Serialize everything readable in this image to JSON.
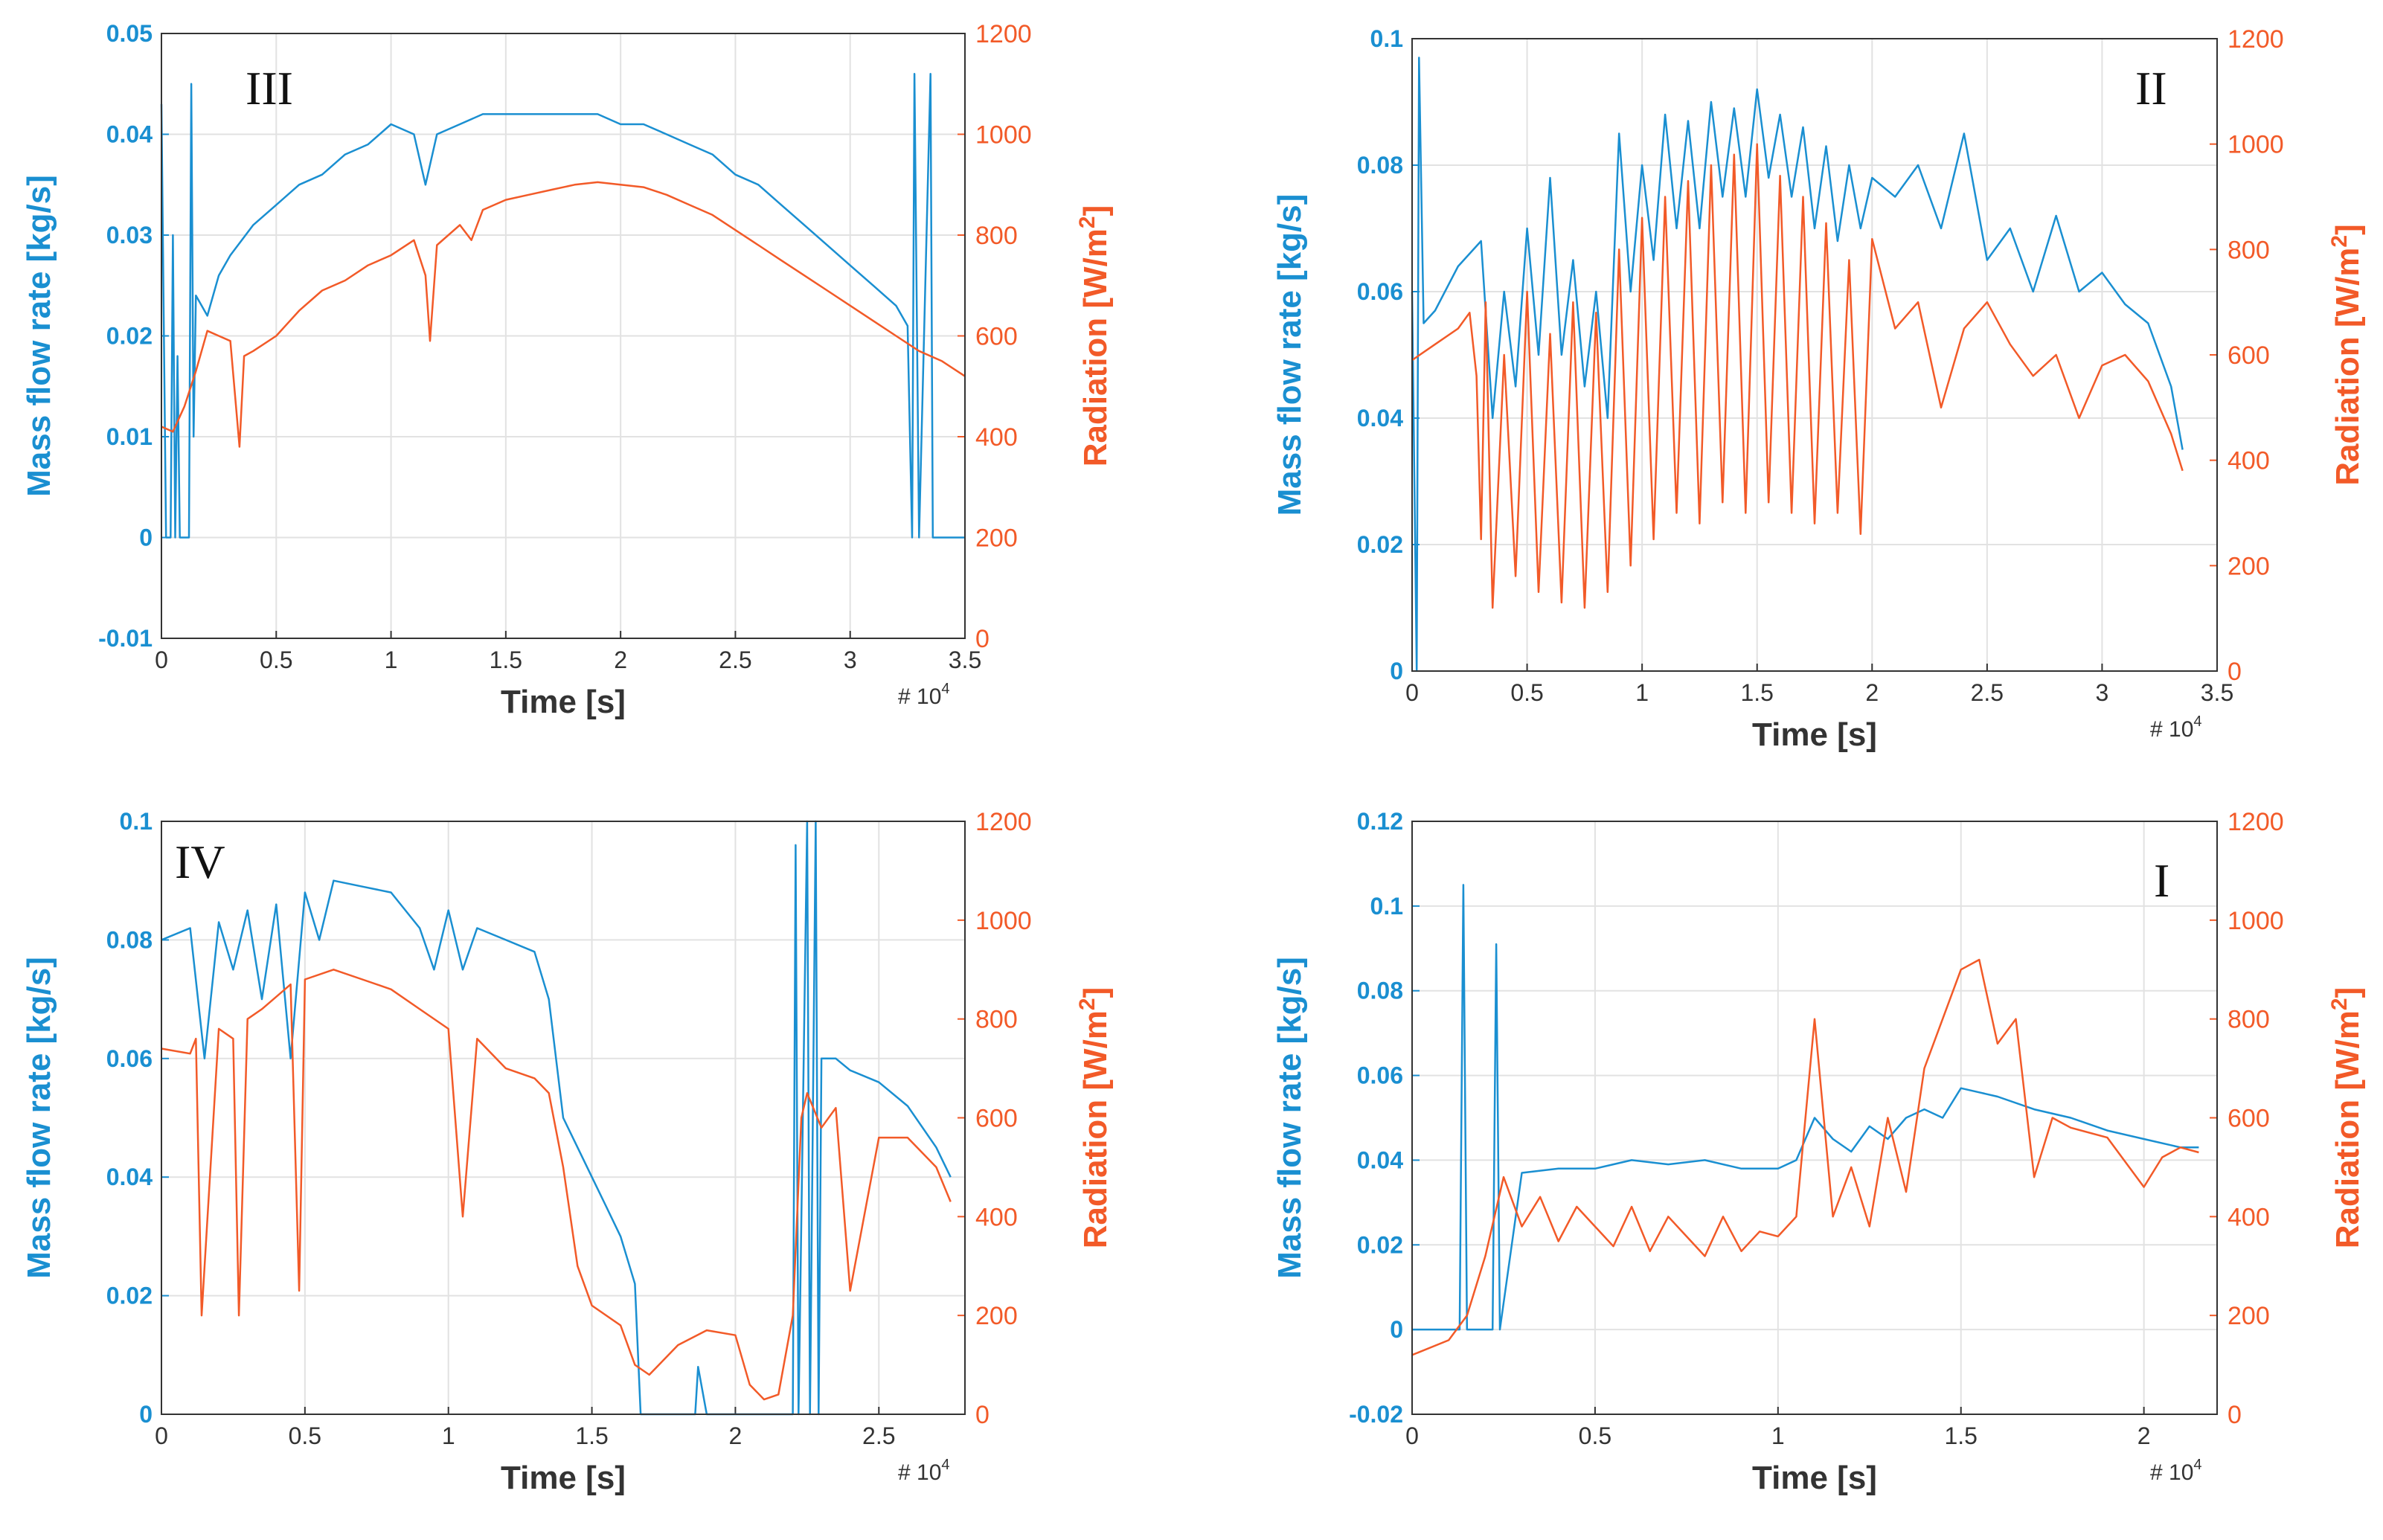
{
  "colors": {
    "mass_flow": "#1a8fd1",
    "radiation": "#f25a28"
  },
  "chart_data": [
    {
      "type": "line",
      "panel_label": "III",
      "xlabel": "Time [s]",
      "x_multiplier": "# 10",
      "x_multiplier_exp": "4",
      "ylabel": "Mass flow rate [kg/s]",
      "y2label_main": "Radiation [W/m",
      "y2label_sup": "2",
      "y2label_end": "]",
      "xlim": [
        0,
        3.5
      ],
      "ylim": [
        -0.01,
        0.05
      ],
      "y2lim": [
        0,
        1200
      ],
      "xticks": [
        "0",
        "0.5",
        "1",
        "1.5",
        "2",
        "2.5",
        "3",
        "3.5"
      ],
      "yticks": [
        "-0.01",
        "0",
        "0.01",
        "0.02",
        "0.03",
        "0.04",
        "0.05"
      ],
      "y2ticks": [
        "0",
        "200",
        "400",
        "600",
        "800",
        "1000",
        "1200"
      ],
      "grid": true,
      "series": [
        {
          "axis": "left",
          "color": "#1a8fd1",
          "x": [
            0,
            0.02,
            0.04,
            0.05,
            0.06,
            0.07,
            0.08,
            0.1,
            0.12,
            0.13,
            0.14,
            0.15,
            0.2,
            0.25,
            0.3,
            0.4,
            0.5,
            0.6,
            0.7,
            0.8,
            0.9,
            1.0,
            1.1,
            1.15,
            1.2,
            1.3,
            1.4,
            1.5,
            1.6,
            1.7,
            1.8,
            1.9,
            2.0,
            2.1,
            2.2,
            2.3,
            2.4,
            2.5,
            2.6,
            2.7,
            2.8,
            2.9,
            3.0,
            3.1,
            3.2,
            3.25,
            3.27,
            3.28,
            3.3,
            3.35,
            3.36,
            3.4,
            3.5
          ],
          "y": [
            0.043,
            0,
            0.0,
            0.03,
            0.0,
            0.018,
            0.0,
            0.0,
            0.0,
            0.045,
            0.01,
            0.024,
            0.022,
            0.026,
            0.028,
            0.031,
            0.033,
            0.035,
            0.036,
            0.038,
            0.039,
            0.041,
            0.04,
            0.035,
            0.04,
            0.041,
            0.042,
            0.042,
            0.042,
            0.042,
            0.042,
            0.042,
            0.041,
            0.041,
            0.04,
            0.039,
            0.038,
            0.036,
            0.035,
            0.033,
            0.031,
            0.029,
            0.027,
            0.025,
            0.023,
            0.021,
            0.0,
            0.046,
            0.0,
            0.046,
            0.0,
            0.0,
            0.0
          ]
        },
        {
          "axis": "right",
          "color": "#f25a28",
          "x": [
            0,
            0.05,
            0.1,
            0.15,
            0.2,
            0.25,
            0.3,
            0.34,
            0.36,
            0.4,
            0.5,
            0.6,
            0.7,
            0.8,
            0.9,
            1.0,
            1.1,
            1.15,
            1.17,
            1.2,
            1.3,
            1.35,
            1.4,
            1.5,
            1.6,
            1.7,
            1.8,
            1.9,
            2.0,
            2.1,
            2.2,
            2.3,
            2.4,
            2.5,
            2.6,
            2.7,
            2.8,
            2.9,
            3.0,
            3.1,
            3.2,
            3.3,
            3.4,
            3.5
          ],
          "y": [
            420,
            410,
            460,
            530,
            610,
            600,
            590,
            380,
            560,
            570,
            600,
            650,
            690,
            710,
            740,
            760,
            790,
            720,
            590,
            780,
            820,
            790,
            850,
            870,
            880,
            890,
            900,
            905,
            900,
            895,
            880,
            860,
            840,
            810,
            780,
            750,
            720,
            690,
            660,
            630,
            600,
            570,
            550,
            520
          ]
        }
      ]
    },
    {
      "type": "line",
      "panel_label": "II",
      "xlabel": "Time [s]",
      "x_multiplier": "# 10",
      "x_multiplier_exp": "4",
      "ylabel": "Mass flow rate [kg/s]",
      "y2label_main": "Radiation [W/m",
      "y2label_sup": "2",
      "y2label_end": "]",
      "xlim": [
        0,
        3.5
      ],
      "ylim": [
        0,
        0.1
      ],
      "y2lim": [
        0,
        1200
      ],
      "xticks": [
        "0",
        "0.5",
        "1",
        "1.5",
        "2",
        "2.5",
        "3",
        "3.5"
      ],
      "yticks": [
        "0",
        "0.02",
        "0.04",
        "0.06",
        "0.08",
        "0.1"
      ],
      "y2ticks": [
        "0",
        "200",
        "400",
        "600",
        "800",
        "1000",
        "1200"
      ],
      "grid": true,
      "series": [
        {
          "axis": "left",
          "color": "#1a8fd1",
          "x": [
            0,
            0.02,
            0.03,
            0.05,
            0.1,
            0.2,
            0.3,
            0.35,
            0.4,
            0.45,
            0.5,
            0.55,
            0.6,
            0.65,
            0.7,
            0.75,
            0.8,
            0.85,
            0.9,
            0.95,
            1.0,
            1.05,
            1.1,
            1.15,
            1.2,
            1.25,
            1.3,
            1.35,
            1.4,
            1.45,
            1.5,
            1.55,
            1.6,
            1.65,
            1.7,
            1.75,
            1.8,
            1.85,
            1.9,
            1.95,
            2.0,
            2.1,
            2.2,
            2.3,
            2.4,
            2.5,
            2.6,
            2.7,
            2.8,
            2.9,
            3.0,
            3.1,
            3.2,
            3.3,
            3.35
          ],
          "y": [
            0.06,
            0.0,
            0.097,
            0.055,
            0.057,
            0.064,
            0.068,
            0.04,
            0.06,
            0.045,
            0.07,
            0.05,
            0.078,
            0.05,
            0.065,
            0.045,
            0.06,
            0.04,
            0.085,
            0.06,
            0.08,
            0.065,
            0.088,
            0.07,
            0.087,
            0.07,
            0.09,
            0.075,
            0.089,
            0.075,
            0.092,
            0.078,
            0.088,
            0.075,
            0.086,
            0.07,
            0.083,
            0.068,
            0.08,
            0.07,
            0.078,
            0.075,
            0.08,
            0.07,
            0.085,
            0.065,
            0.07,
            0.06,
            0.072,
            0.06,
            0.063,
            0.058,
            0.055,
            0.045,
            0.035
          ]
        },
        {
          "axis": "right",
          "color": "#f25a28",
          "x": [
            0,
            0.1,
            0.2,
            0.25,
            0.28,
            0.3,
            0.32,
            0.35,
            0.4,
            0.45,
            0.5,
            0.55,
            0.6,
            0.65,
            0.7,
            0.75,
            0.8,
            0.85,
            0.9,
            0.95,
            1.0,
            1.05,
            1.1,
            1.15,
            1.2,
            1.25,
            1.3,
            1.35,
            1.4,
            1.45,
            1.5,
            1.55,
            1.6,
            1.65,
            1.7,
            1.75,
            1.8,
            1.85,
            1.9,
            1.95,
            2.0,
            2.1,
            2.2,
            2.3,
            2.4,
            2.5,
            2.6,
            2.7,
            2.8,
            2.9,
            3.0,
            3.1,
            3.2,
            3.3,
            3.35
          ],
          "y": [
            590,
            620,
            650,
            680,
            560,
            250,
            700,
            120,
            600,
            180,
            720,
            150,
            640,
            130,
            700,
            120,
            680,
            150,
            800,
            200,
            860,
            250,
            900,
            300,
            930,
            280,
            960,
            320,
            980,
            300,
            1000,
            320,
            940,
            300,
            900,
            280,
            850,
            300,
            780,
            260,
            820,
            650,
            700,
            500,
            650,
            700,
            620,
            560,
            600,
            480,
            580,
            600,
            550,
            450,
            380
          ]
        }
      ]
    },
    {
      "type": "line",
      "panel_label": "IV",
      "xlabel": "Time [s]",
      "x_multiplier": "# 10",
      "x_multiplier_exp": "4",
      "ylabel": "Mass flow rate [kg/s]",
      "y2label_main": "Radiation [W/m",
      "y2label_sup": "2",
      "y2label_end": "]",
      "xlim": [
        0,
        2.8
      ],
      "ylim": [
        0,
        0.1
      ],
      "y2lim": [
        0,
        1200
      ],
      "xticks": [
        "0",
        "0.5",
        "1",
        "1.5",
        "2",
        "2.5"
      ],
      "yticks": [
        "0",
        "0.02",
        "0.04",
        "0.06",
        "0.08",
        "0.1"
      ],
      "y2ticks": [
        "0",
        "200",
        "400",
        "600",
        "800",
        "1000",
        "1200"
      ],
      "grid": true,
      "series": [
        {
          "axis": "left",
          "color": "#1a8fd1",
          "x": [
            0,
            0.1,
            0.15,
            0.2,
            0.25,
            0.3,
            0.35,
            0.4,
            0.45,
            0.5,
            0.55,
            0.6,
            0.7,
            0.8,
            0.9,
            0.95,
            1.0,
            1.05,
            1.1,
            1.2,
            1.3,
            1.35,
            1.4,
            1.45,
            1.5,
            1.55,
            1.6,
            1.65,
            1.67,
            1.7,
            1.8,
            1.86,
            1.87,
            1.9,
            2.0,
            2.1,
            2.2,
            2.21,
            2.22,
            2.25,
            2.26,
            2.28,
            2.29,
            2.3,
            2.35,
            2.4,
            2.5,
            2.6,
            2.7,
            2.75
          ],
          "y": [
            0.08,
            0.082,
            0.06,
            0.083,
            0.075,
            0.085,
            0.07,
            0.086,
            0.06,
            0.088,
            0.08,
            0.09,
            0.089,
            0.088,
            0.082,
            0.075,
            0.085,
            0.075,
            0.082,
            0.08,
            0.078,
            0.07,
            0.05,
            0.045,
            0.04,
            0.035,
            0.03,
            0.022,
            0.0,
            0.0,
            0.0,
            0.0,
            0.008,
            0.0,
            0.0,
            0.0,
            0.0,
            0.096,
            0.0,
            0.1,
            0.0,
            0.1,
            0.0,
            0.06,
            0.06,
            0.058,
            0.056,
            0.052,
            0.045,
            0.04
          ]
        },
        {
          "axis": "right",
          "color": "#f25a28",
          "x": [
            0,
            0.1,
            0.12,
            0.14,
            0.2,
            0.25,
            0.27,
            0.3,
            0.35,
            0.45,
            0.48,
            0.5,
            0.6,
            0.7,
            0.8,
            0.9,
            1.0,
            1.05,
            1.1,
            1.2,
            1.3,
            1.35,
            1.4,
            1.45,
            1.5,
            1.6,
            1.65,
            1.7,
            1.8,
            1.9,
            2.0,
            2.05,
            2.1,
            2.15,
            2.2,
            2.23,
            2.25,
            2.3,
            2.35,
            2.4,
            2.5,
            2.6,
            2.7,
            2.75
          ],
          "y": [
            740,
            730,
            760,
            200,
            780,
            760,
            200,
            800,
            820,
            870,
            250,
            880,
            900,
            880,
            860,
            820,
            780,
            400,
            760,
            700,
            680,
            650,
            500,
            300,
            220,
            180,
            100,
            80,
            140,
            170,
            160,
            60,
            30,
            40,
            200,
            600,
            650,
            580,
            620,
            250,
            560,
            560,
            500,
            430
          ]
        }
      ]
    },
    {
      "type": "line",
      "panel_label": "I",
      "xlabel": "Time [s]",
      "x_multiplier": "# 10",
      "x_multiplier_exp": "4",
      "ylabel": "Mass flow rate [kg/s]",
      "y2label_main": "Radiation [W/m",
      "y2label_sup": "2",
      "y2label_end": "]",
      "xlim": [
        0,
        2.2
      ],
      "ylim": [
        -0.02,
        0.12
      ],
      "y2lim": [
        0,
        1200
      ],
      "xticks": [
        "0",
        "0.5",
        "1",
        "1.5",
        "2"
      ],
      "yticks": [
        "-0.02",
        "0",
        "0.02",
        "0.04",
        "0.06",
        "0.08",
        "0.1",
        "0.12"
      ],
      "y2ticks": [
        "0",
        "200",
        "400",
        "600",
        "800",
        "1000",
        "1200"
      ],
      "grid": true,
      "series": [
        {
          "axis": "left",
          "color": "#1a8fd1",
          "x": [
            0,
            0.1,
            0.13,
            0.14,
            0.15,
            0.2,
            0.22,
            0.23,
            0.24,
            0.3,
            0.4,
            0.5,
            0.6,
            0.7,
            0.8,
            0.9,
            1.0,
            1.05,
            1.1,
            1.15,
            1.2,
            1.25,
            1.3,
            1.35,
            1.4,
            1.45,
            1.5,
            1.55,
            1.6,
            1.7,
            1.8,
            1.9,
            2.0,
            2.1,
            2.15
          ],
          "y": [
            0.0,
            0.0,
            0.0,
            0.105,
            0.0,
            0.0,
            0.0,
            0.091,
            0.0,
            0.037,
            0.038,
            0.038,
            0.04,
            0.039,
            0.04,
            0.038,
            0.038,
            0.04,
            0.05,
            0.045,
            0.042,
            0.048,
            0.045,
            0.05,
            0.052,
            0.05,
            0.057,
            0.056,
            0.055,
            0.052,
            0.05,
            0.047,
            0.045,
            0.043,
            0.043
          ]
        },
        {
          "axis": "right",
          "color": "#f25a28",
          "x": [
            0,
            0.1,
            0.15,
            0.2,
            0.25,
            0.3,
            0.35,
            0.4,
            0.45,
            0.5,
            0.55,
            0.6,
            0.65,
            0.7,
            0.75,
            0.8,
            0.85,
            0.9,
            0.95,
            1.0,
            1.05,
            1.1,
            1.15,
            1.2,
            1.25,
            1.3,
            1.35,
            1.4,
            1.45,
            1.5,
            1.55,
            1.6,
            1.65,
            1.7,
            1.75,
            1.8,
            1.9,
            2.0,
            2.05,
            2.1,
            2.15
          ],
          "y": [
            120,
            150,
            200,
            320,
            480,
            380,
            440,
            350,
            420,
            380,
            340,
            420,
            330,
            400,
            360,
            320,
            400,
            330,
            370,
            360,
            400,
            800,
            400,
            500,
            380,
            600,
            450,
            700,
            800,
            900,
            920,
            750,
            800,
            480,
            600,
            580,
            560,
            460,
            520,
            540,
            530
          ]
        }
      ]
    }
  ]
}
